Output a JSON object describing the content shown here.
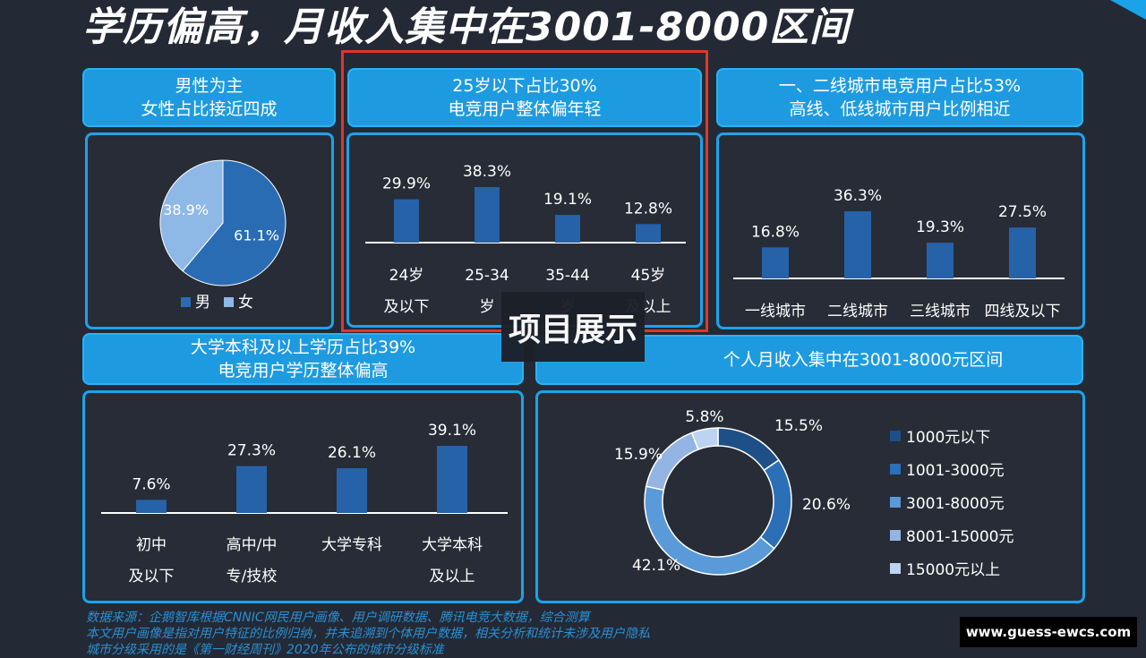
{
  "page": {
    "title": "学历偏高，月收入集中在3001-8000区间",
    "overlay_tag": "项目展示",
    "watermark": "www.guess-ewcs.com",
    "footer_lines": [
      "数据来源：企鹅智库根据CNNIC网民用户画像、用户调研数据、腾讯电竞大数据，综合测算",
      "本文用户画像是指对用户特征的比例归纳，并未追溯到个体用户数据，相关分析和统计未涉及用户隐私",
      "城市分级采用的是《第一财经周刊》2020年公布的城市分级标准"
    ],
    "colors": {
      "header": "#1e9be0",
      "panel_border": "#1ea2ea",
      "bar": "#2662a8",
      "highlight": "#e0362a"
    }
  },
  "chart_data": [
    {
      "type": "pie",
      "header": [
        "男性为主",
        "女性占比接近四成"
      ],
      "labels": [
        "男",
        "女"
      ],
      "values": [
        61.1,
        38.9
      ],
      "value_labels": [
        "61.1%",
        "38.9%"
      ],
      "colors": [
        "#2a6cb4",
        "#8eb8e6"
      ]
    },
    {
      "type": "bar",
      "header": [
        "25岁以下占比30%",
        "电竞用户整体偏年轻"
      ],
      "categories": [
        [
          "24岁",
          "及以下"
        ],
        [
          "25-34",
          "岁"
        ],
        [
          "35-44",
          "岁"
        ],
        [
          "45岁",
          "及以上"
        ]
      ],
      "values": [
        29.9,
        38.3,
        19.1,
        12.8
      ],
      "value_labels": [
        "29.9%",
        "38.3%",
        "19.1%",
        "12.8%"
      ]
    },
    {
      "type": "bar",
      "header": [
        "一、二线城市电竞用户占比53%",
        "高线、低线城市用户比例相近"
      ],
      "categories": [
        [
          "一线城市"
        ],
        [
          "二线城市"
        ],
        [
          "三线城市"
        ],
        [
          "四线及以下"
        ]
      ],
      "values": [
        16.8,
        36.3,
        19.3,
        27.5
      ],
      "value_labels": [
        "16.8%",
        "36.3%",
        "19.3%",
        "27.5%"
      ]
    },
    {
      "type": "bar",
      "header": [
        "大学本科及以上学历占比39%",
        "电竞用户学历整体偏高"
      ],
      "categories": [
        [
          "初中",
          "及以下"
        ],
        [
          "高中/中",
          "专/技校"
        ],
        [
          "大学专科"
        ],
        [
          "大学本科",
          "及以上"
        ]
      ],
      "values": [
        7.6,
        27.3,
        26.1,
        39.1
      ],
      "value_labels": [
        "7.6%",
        "27.3%",
        "26.1%",
        "39.1%"
      ]
    },
    {
      "type": "donut",
      "header": [
        "个人月收入集中在3001-8000元区间"
      ],
      "labels": [
        "1000元以下",
        "1001-3000元",
        "3001-8000元",
        "8001-15000元",
        "15000元以上"
      ],
      "values": [
        15.5,
        20.6,
        42.1,
        15.9,
        5.8
      ],
      "value_labels": [
        "15.5%",
        "20.6%",
        "42.1%",
        "15.9%",
        "5.8%"
      ],
      "colors": [
        "#1e4f86",
        "#2b6fb6",
        "#5a9ad9",
        "#94b4e3",
        "#bcd4f0"
      ]
    }
  ]
}
